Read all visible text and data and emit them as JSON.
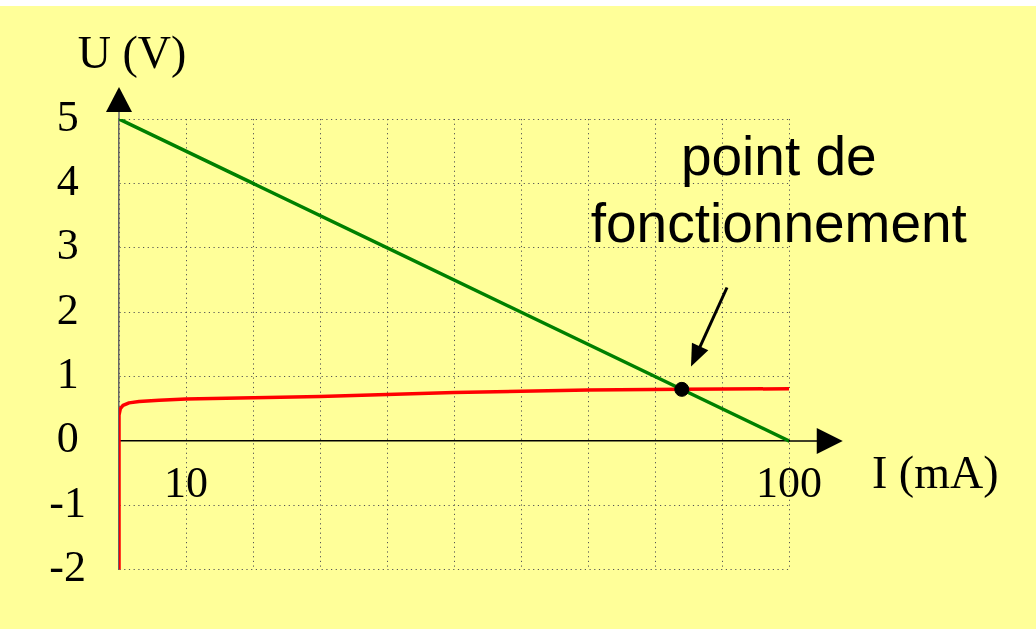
{
  "chart_data": {
    "type": "line",
    "xlabel": "I (mA)",
    "ylabel": "U (V)",
    "series": [
      {
        "color": "#ff0000",
        "x": [
          0,
          0,
          0.2,
          0.6,
          1.5,
          3,
          6,
          10,
          20,
          30,
          40,
          50,
          60,
          70,
          84,
          100
        ],
        "values": [
          -2,
          0.4,
          0.5,
          0.55,
          0.59,
          0.61,
          0.63,
          0.65,
          0.67,
          0.69,
          0.72,
          0.75,
          0.77,
          0.79,
          0.8,
          0.81
        ]
      },
      {
        "color": "#008000",
        "x": [
          0,
          100
        ],
        "values": [
          5,
          0
        ]
      },
      {
        "type": "scatter",
        "color": "#000000",
        "x": [
          84
        ],
        "values": [
          0.8
        ]
      }
    ],
    "annotations": [
      {
        "text": "point de fonctionnement",
        "x": 84,
        "y": 0.8
      }
    ],
    "xlim": [
      0,
      100
    ],
    "xticks": [
      {
        "value": 0,
        "label": null
      },
      10,
      {
        "value": 20,
        "label": null
      },
      {
        "value": 30,
        "label": null
      },
      {
        "value": 40,
        "label": null
      },
      {
        "value": 50,
        "label": null
      },
      {
        "value": 60,
        "label": null
      },
      {
        "value": 70,
        "label": null
      },
      {
        "value": 80,
        "label": null
      },
      {
        "value": 90,
        "label": null
      },
      100
    ],
    "ylim": [
      -2,
      5
    ],
    "yticks": [
      -2,
      -1,
      0,
      1,
      2,
      3,
      4,
      5
    ],
    "grid": true,
    "line_style": "solid"
  }
}
